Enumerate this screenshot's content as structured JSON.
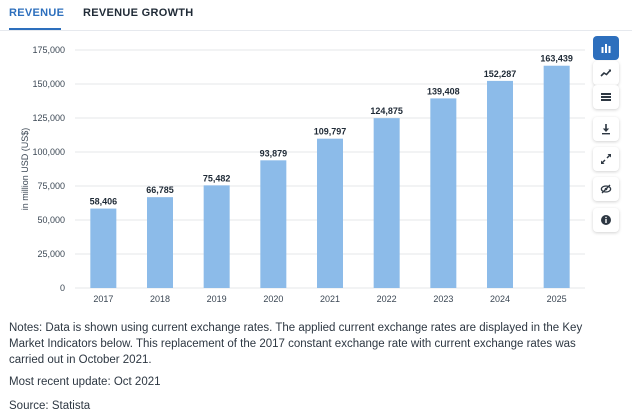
{
  "tabs": [
    {
      "label": "REVENUE",
      "active": true
    },
    {
      "label": "REVENUE GROWTH",
      "active": false
    }
  ],
  "colors": {
    "accent": "#2d6fbd",
    "bar": "#8cbbe9",
    "grid": "#e5e7ea"
  },
  "chart_data": {
    "type": "bar",
    "categories": [
      "2017",
      "2018",
      "2019",
      "2020",
      "2021",
      "2022",
      "2023",
      "2024",
      "2025"
    ],
    "values": [
      58406,
      66785,
      75482,
      93879,
      109797,
      124875,
      139408,
      152287,
      163439
    ],
    "value_labels": [
      "58,406",
      "66,785",
      "75,482",
      "93,879",
      "109,797",
      "124,875",
      "139,408",
      "152,287",
      "163,439"
    ],
    "ylabel": "in million USD (US$)",
    "ylim": [
      0,
      175000
    ],
    "yticks": [
      0,
      25000,
      50000,
      75000,
      100000,
      125000,
      150000,
      175000
    ],
    "ytick_labels": [
      "0",
      "25,000",
      "50,000",
      "75,000",
      "100,000",
      "125,000",
      "150,000",
      "175,000"
    ],
    "grid": true
  },
  "toolbar": [
    {
      "icon": "bar-chart-icon",
      "active": true
    },
    {
      "icon": "line-chart-icon",
      "active": false
    },
    {
      "icon": "table-icon",
      "active": false
    },
    {
      "icon": "download-icon",
      "active": false
    },
    {
      "icon": "fullscreen-icon",
      "active": false
    },
    {
      "icon": "hide-icon",
      "active": false
    },
    {
      "icon": "info-icon",
      "active": false
    }
  ],
  "notes": {
    "text": "Notes: Data is shown using current exchange rates. The applied current exchange rates are displayed in the Key Market Indicators below. This replacement of the 2017 constant exchange rate with current exchange rates was carried out in October 2021.",
    "update": "Most recent update: Oct 2021",
    "source": "Source: Statista"
  }
}
